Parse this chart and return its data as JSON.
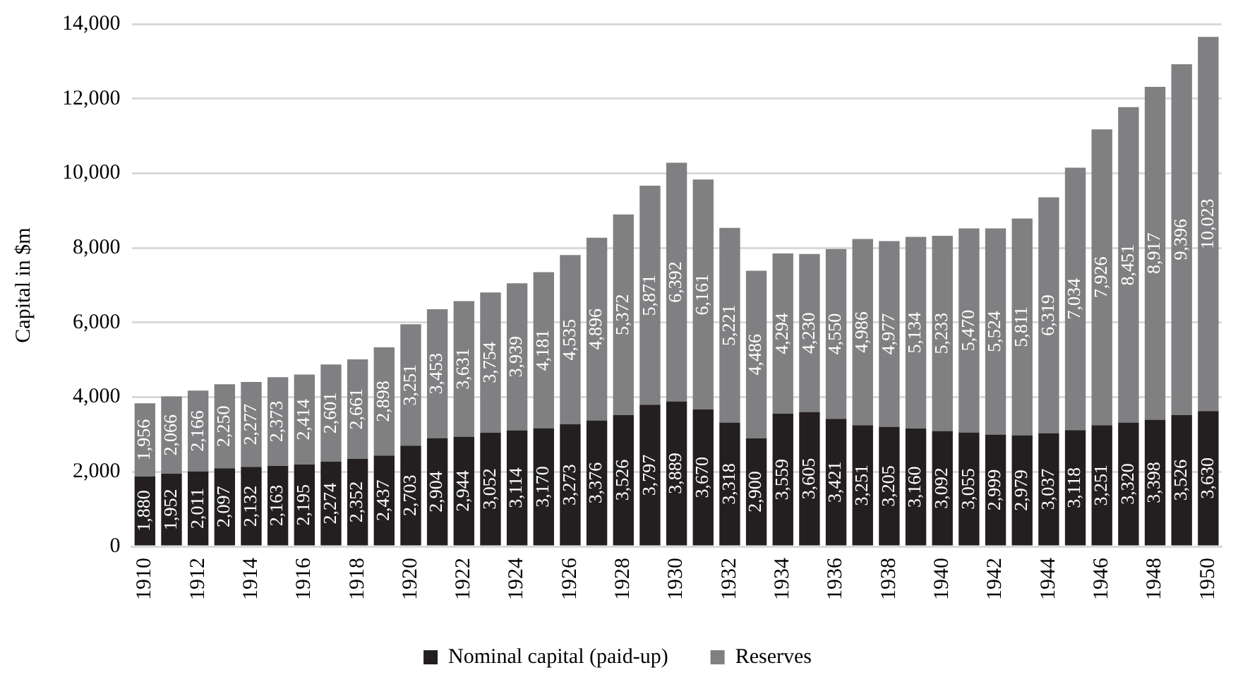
{
  "chart_data": {
    "type": "bar",
    "stacked": true,
    "ylabel": "Capital in $m",
    "categories": [
      "1910",
      null,
      "1912",
      null,
      "1914",
      null,
      "1916",
      null,
      "1918",
      null,
      "1920",
      null,
      "1922",
      null,
      "1924",
      null,
      "1926",
      null,
      "1928",
      null,
      "1930",
      null,
      "1932",
      null,
      "1934",
      null,
      "1936",
      null,
      "1938",
      null,
      "1940",
      null,
      "1942",
      null,
      "1944",
      null,
      "1946",
      null,
      "1948",
      null,
      "1950"
    ],
    "series": [
      {
        "name": "Nominal capital (paid-up)",
        "color": "#231f20",
        "values": [
          1880,
          1952,
          2011,
          2097,
          2132,
          2163,
          2195,
          2274,
          2352,
          2437,
          2703,
          2904,
          2944,
          3052,
          3114,
          3170,
          3273,
          3376,
          3526,
          3797,
          3889,
          3670,
          3318,
          2900,
          3559,
          3605,
          3421,
          3251,
          3205,
          3160,
          3092,
          3055,
          2999,
          2979,
          3037,
          3118,
          3251,
          3320,
          3398,
          3526,
          3630
        ],
        "value_labels": [
          "1,880",
          "1,952",
          "2,011",
          "2,097",
          "2,132",
          "2,163",
          "2,195",
          "2,274",
          "2,352",
          "2,437",
          "2,703",
          "2,904",
          "2,944",
          "3,052",
          "3,114",
          "3,170",
          "3,273",
          "3,376",
          "3,526",
          "3,797",
          "3,889",
          "3,670",
          "3,318",
          "2,900",
          "3,559",
          "3,605",
          "3,421",
          "3,251",
          "3,205",
          "3,160",
          "3,092",
          "3,055",
          "2,999",
          "2,979",
          "3,037",
          "3,118",
          "3,251",
          "3,320",
          "3,398",
          "3,526",
          "3,630"
        ]
      },
      {
        "name": "Reserves",
        "color": "#808083",
        "values": [
          1956,
          2066,
          2166,
          2250,
          2277,
          2373,
          2414,
          2601,
          2661,
          2898,
          3251,
          3453,
          3631,
          3754,
          3939,
          4181,
          4535,
          4896,
          5372,
          5871,
          6392,
          6161,
          5221,
          4486,
          4294,
          4230,
          4550,
          4986,
          4977,
          5134,
          5233,
          5470,
          5524,
          5811,
          6319,
          7034,
          7926,
          8451,
          8917,
          9396,
          10023
        ],
        "value_labels": [
          "1,956",
          "2,066",
          "2,166",
          "2,250",
          "2,277",
          "2,373",
          "2,414",
          "2,601",
          "2,661",
          "2,898",
          "3,251",
          "3,453",
          "3,631",
          "3,754",
          "3,939",
          "4,181",
          "4,535",
          "4,896",
          "5,372",
          "5,871",
          "6,392",
          "6,161",
          "5,221",
          "4,486",
          "4,294",
          "4,230",
          "4,550",
          "4,986",
          "4,977",
          "5,134",
          "5,233",
          "5,470",
          "5,524",
          "5,811",
          "6,319",
          "7,034",
          "7,926",
          "8,451",
          "8,917",
          "9,396",
          "10,023"
        ]
      }
    ],
    "ylim": [
      0,
      14000
    ],
    "yticks": [
      0,
      {
        "value": 2000,
        "label": "2,000"
      },
      {
        "value": 4000,
        "label": "4,000"
      },
      {
        "value": 6000,
        "label": "6,000"
      },
      {
        "value": 8000,
        "label": "8,000"
      },
      {
        "value": 10000,
        "label": "10,000"
      },
      {
        "value": 12000,
        "label": "12,000"
      },
      {
        "value": 14000,
        "label": "14,000"
      }
    ],
    "grid": "y",
    "legend": "bottom"
  }
}
